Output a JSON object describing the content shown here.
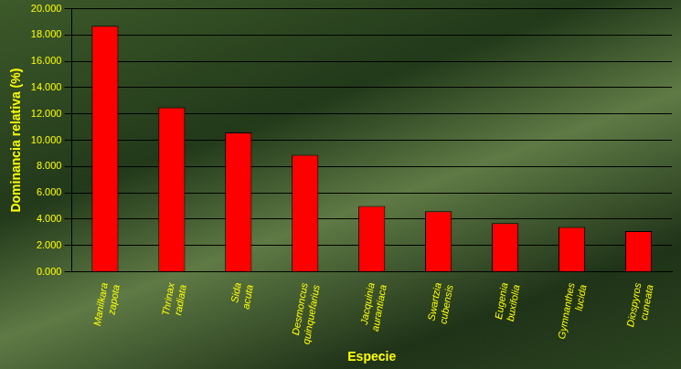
{
  "chart_data": {
    "type": "bar",
    "categories": [
      "Manilkara zapota",
      "Thrinax radiata",
      "Sida acuta",
      "Desmoncus quinquefarius",
      "Jacquinia aurantiaca",
      "Swartzia cubensis",
      "Eugenia buxifolia",
      "Gymnanthes lucida",
      "Diospyros cuneata"
    ],
    "values": [
      18.7,
      12.5,
      10.6,
      8.9,
      5.0,
      4.6,
      3.7,
      3.4,
      3.1
    ],
    "color": "#ff0000",
    "x_label": "Especie",
    "y_label": "Dominancia relativa (%)",
    "ylim": [
      0,
      20
    ],
    "yticks": [
      {
        "value": 0,
        "label": "0.000"
      },
      {
        "value": 2,
        "label": "2.000"
      },
      {
        "value": 4,
        "label": "4.000"
      },
      {
        "value": 6,
        "label": "6.000"
      },
      {
        "value": 8,
        "label": "8.000"
      },
      {
        "value": 10,
        "label": "10.000"
      },
      {
        "value": 12,
        "label": "12.000"
      },
      {
        "value": 14,
        "label": "14.000"
      },
      {
        "value": 16,
        "label": "16.000"
      },
      {
        "value": 18,
        "label": "18.000"
      },
      {
        "value": 20,
        "label": "20.000"
      }
    ],
    "grid": true
  }
}
